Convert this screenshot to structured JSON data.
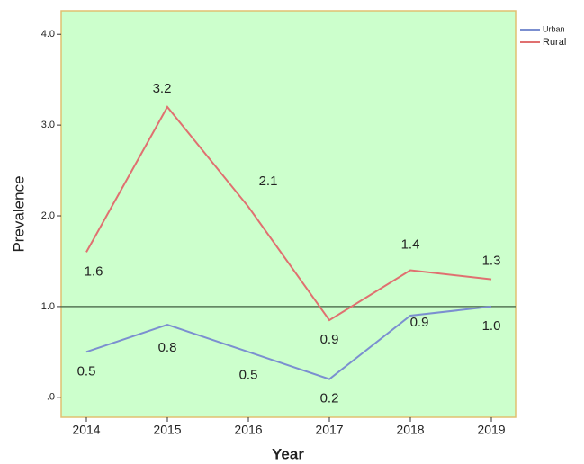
{
  "chart_data": {
    "type": "line",
    "x_label": "Year",
    "y_label": "Prevalence",
    "categories": [
      "2014",
      "2015",
      "2016",
      "2017",
      "2018",
      "2019"
    ],
    "series": [
      {
        "name": "Urban",
        "color": "#7b8fd0",
        "values": [
          0.5,
          0.8,
          0.5,
          0.2,
          0.9,
          1.0
        ],
        "value_labels": [
          "0.5",
          "0.8",
          "0.5",
          "0.2",
          "0.9",
          "1.0"
        ]
      },
      {
        "name": "Rural",
        "color": "#e07070",
        "values": [
          1.6,
          3.2,
          2.1,
          0.85,
          1.4,
          1.3
        ],
        "value_labels": [
          "1.6",
          "3.2",
          "2.1",
          "0.9",
          "1.4",
          "1.3"
        ]
      }
    ],
    "ylim": [
      -0.22,
      4.26
    ],
    "yticks": [
      {
        "value": 0,
        "label": ".0"
      },
      {
        "value": 1,
        "label": "1.0"
      },
      {
        "value": 2,
        "label": "2.0"
      },
      {
        "value": 3,
        "label": "3.0"
      },
      {
        "value": 4,
        "label": "4.0"
      }
    ],
    "reference_line": 1,
    "background": "#ccffcc",
    "legend": "outside-top-right"
  }
}
